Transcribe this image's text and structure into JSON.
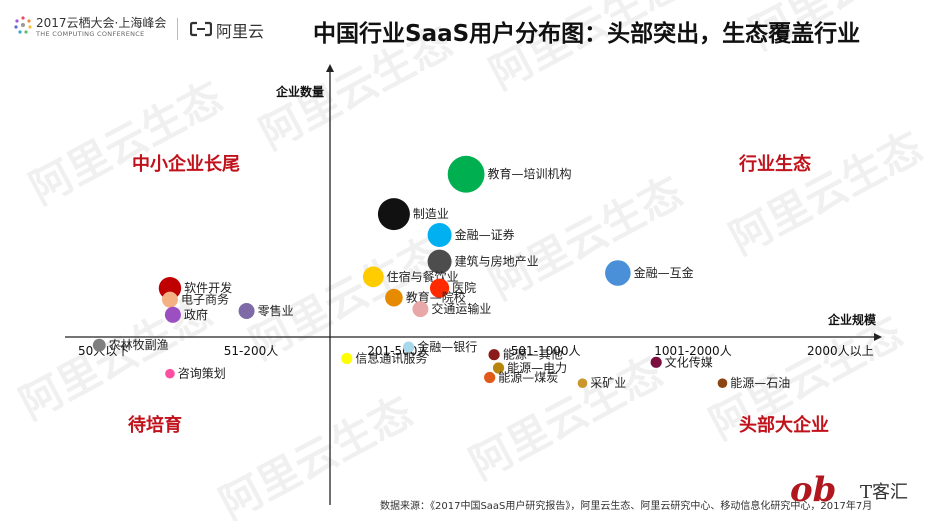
{
  "header": {
    "event_title": "2017云栖大会·上海峰会",
    "event_subtitle": "THE COMPUTING CONFERENCE",
    "brand": "阿里云"
  },
  "page_title": "中国行业SaaS用户分布图：头部突出，生态覆盖行业",
  "source_note": "数据来源：《2017中国SaaS用户研究报告》，阿里云生态、阿里云研究中心、移动信息化研究中心，2017年7月",
  "bottom_logo": {
    "script": "ob",
    "text": "T客汇"
  },
  "watermark_text": "阿里云生态",
  "colors": {
    "quadrant_label": "#c0121b",
    "axis": "#222222"
  },
  "chart_data": {
    "type": "scatter",
    "title": "中国行业SaaS用户分布图：头部突出，生态覆盖行业",
    "xlabel": "企业规模",
    "ylabel": "企业数量",
    "categories": [
      "50人以下",
      "51-200人",
      "201-500人",
      "501-1000人",
      "1001-2000人",
      "2000人以上"
    ],
    "quadrants": {
      "top_left": "中小企业长尾",
      "top_right": "行业生态",
      "bottom_left": "待培育",
      "bottom_right": "头部大企业"
    },
    "xlim": [
      0.5,
      6.5
    ],
    "ylim": [
      -10,
      10
    ],
    "points": [
      {
        "label": "教育—培训机构",
        "x": 3.46,
        "y": 8.2,
        "size": 2.3,
        "color": "#00b050"
      },
      {
        "label": "制造业",
        "x": 2.97,
        "y": 6.1,
        "size": 2.0,
        "color": "#111111"
      },
      {
        "label": "金融—证券",
        "x": 3.28,
        "y": 5.0,
        "size": 1.5,
        "color": "#00b0f0"
      },
      {
        "label": "建筑与房地产业",
        "x": 3.28,
        "y": 3.6,
        "size": 1.5,
        "color": "#4d4d4d"
      },
      {
        "label": "金融—互金",
        "x": 4.49,
        "y": 3.0,
        "size": 1.6,
        "color": "#4a90d9"
      },
      {
        "label": "住宿与餐饮业",
        "x": 2.83,
        "y": 2.8,
        "size": 1.3,
        "color": "#ffcc00"
      },
      {
        "label": "医院",
        "x": 3.28,
        "y": 2.2,
        "size": 1.2,
        "color": "#ff2a00"
      },
      {
        "label": "软件开发",
        "x": 1.45,
        "y": 2.2,
        "size": 1.4,
        "color": "#c00000"
      },
      {
        "label": "教育—院校",
        "x": 2.97,
        "y": 1.7,
        "size": 1.1,
        "color": "#e68a00"
      },
      {
        "label": "电子商务",
        "x": 1.45,
        "y": 1.6,
        "size": 1.0,
        "color": "#f4b183"
      },
      {
        "label": "交通运输业",
        "x": 3.15,
        "y": 1.1,
        "size": 1.0,
        "color": "#e8a8a8"
      },
      {
        "label": "零售业",
        "x": 1.97,
        "y": 1.0,
        "size": 1.0,
        "color": "#7f6aa8"
      },
      {
        "label": "政府",
        "x": 1.47,
        "y": 0.8,
        "size": 1.0,
        "color": "#9b4fc0"
      },
      {
        "label": "农林牧副渔",
        "x": 0.97,
        "y": -0.8,
        "size": 0.8,
        "color": "#7f7f7f"
      },
      {
        "label": "金融—银行",
        "x": 3.07,
        "y": -0.9,
        "size": 0.7,
        "color": "#a8d8ea"
      },
      {
        "label": "能源—其他",
        "x": 3.65,
        "y": -1.3,
        "size": 0.7,
        "color": "#8b1a1a"
      },
      {
        "label": "信息通讯服务",
        "x": 2.65,
        "y": -1.5,
        "size": 0.7,
        "color": "#ffff00"
      },
      {
        "label": "文化传媒",
        "x": 4.75,
        "y": -1.7,
        "size": 0.7,
        "color": "#7b0f3f"
      },
      {
        "label": "能源—电力",
        "x": 3.68,
        "y": -2.0,
        "size": 0.7,
        "color": "#b8860b"
      },
      {
        "label": "咨询策划",
        "x": 1.45,
        "y": -2.3,
        "size": 0.6,
        "color": "#ff4fa3"
      },
      {
        "label": "能源—煤炭",
        "x": 3.62,
        "y": -2.5,
        "size": 0.7,
        "color": "#e05a1a"
      },
      {
        "label": "采矿业",
        "x": 4.25,
        "y": -2.8,
        "size": 0.6,
        "color": "#c8962a"
      },
      {
        "label": "能源—石油",
        "x": 5.2,
        "y": -2.8,
        "size": 0.6,
        "color": "#8b4513"
      }
    ]
  }
}
